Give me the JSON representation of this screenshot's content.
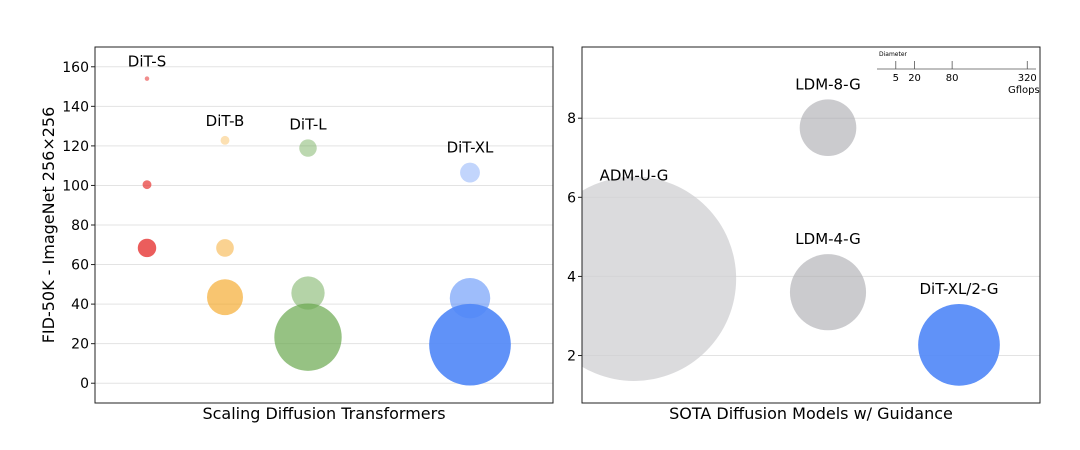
{
  "chart_data": [
    {
      "type": "scatter",
      "title": "Scaling Diffusion Transformers",
      "xlabel": "Scaling Diffusion Transformers",
      "ylabel": "FID-50K - ImageNet 256×256",
      "ylim": [
        -10,
        170
      ],
      "yticks": [
        0,
        20,
        40,
        60,
        80,
        100,
        120,
        140,
        160
      ],
      "xticks": [],
      "grid": true,
      "series": [
        {
          "name": "DiT-S",
          "color": "#e8413f",
          "points": [
            {
              "y": 154,
              "gflops": 0.36,
              "alpha": 0.6
            },
            {
              "y": 100.4,
              "gflops": 1.4,
              "alpha": 0.75
            },
            {
              "y": 68.4,
              "gflops": 6.06,
              "alpha": 0.85
            }
          ]
        },
        {
          "name": "DiT-B",
          "color": "#f5a623",
          "points": [
            {
              "y": 122.8,
              "gflops": 1.4,
              "alpha": 0.35
            },
            {
              "y": 68.4,
              "gflops": 5.56,
              "alpha": 0.5
            },
            {
              "y": 43.5,
              "gflops": 23.01,
              "alpha": 0.65
            }
          ]
        },
        {
          "name": "DiT-L",
          "color": "#6aa84f",
          "points": [
            {
              "y": 118.9,
              "gflops": 5.44,
              "alpha": 0.45
            },
            {
              "y": 45.6,
              "gflops": 19.7,
              "alpha": 0.5
            },
            {
              "y": 23.3,
              "gflops": 80.7,
              "alpha": 0.7
            }
          ]
        },
        {
          "name": "DiT-XL",
          "color": "#4f86f7",
          "points": [
            {
              "y": 106.5,
              "gflops": 7.0,
              "alpha": 0.35
            },
            {
              "y": 43.0,
              "gflops": 29.1,
              "alpha": 0.55
            },
            {
              "y": 19.5,
              "gflops": 118.6,
              "alpha": 0.9
            }
          ]
        }
      ]
    },
    {
      "type": "scatter",
      "title": "SOTA Diffusion Models w/ Guidance",
      "xlabel": "SOTA Diffusion Models w/ Guidance",
      "ylabel": "",
      "ylim": [
        0.8,
        9.8
      ],
      "yticks": [
        2,
        4,
        6,
        8
      ],
      "xticks": [],
      "grid": true,
      "legend": "top-right",
      "size_legend": {
        "title": "Diameter",
        "values": [
          5,
          20,
          80,
          320
        ],
        "unit": "Gflops"
      },
      "points": [
        {
          "label": "ADM-U-G",
          "y": 3.94,
          "gflops": 742,
          "color": "#cfcfd1",
          "alpha": 0.75
        },
        {
          "label": "LDM-8-G",
          "y": 7.76,
          "gflops": 57,
          "color": "#a9a9ad",
          "alpha": 0.6
        },
        {
          "label": "LDM-4-G",
          "y": 3.6,
          "gflops": 103,
          "color": "#a9a9ad",
          "alpha": 0.6
        },
        {
          "label": "DiT-XL/2-G",
          "y": 2.27,
          "gflops": 118.6,
          "color": "#4f86f7",
          "alpha": 0.9
        }
      ]
    }
  ]
}
